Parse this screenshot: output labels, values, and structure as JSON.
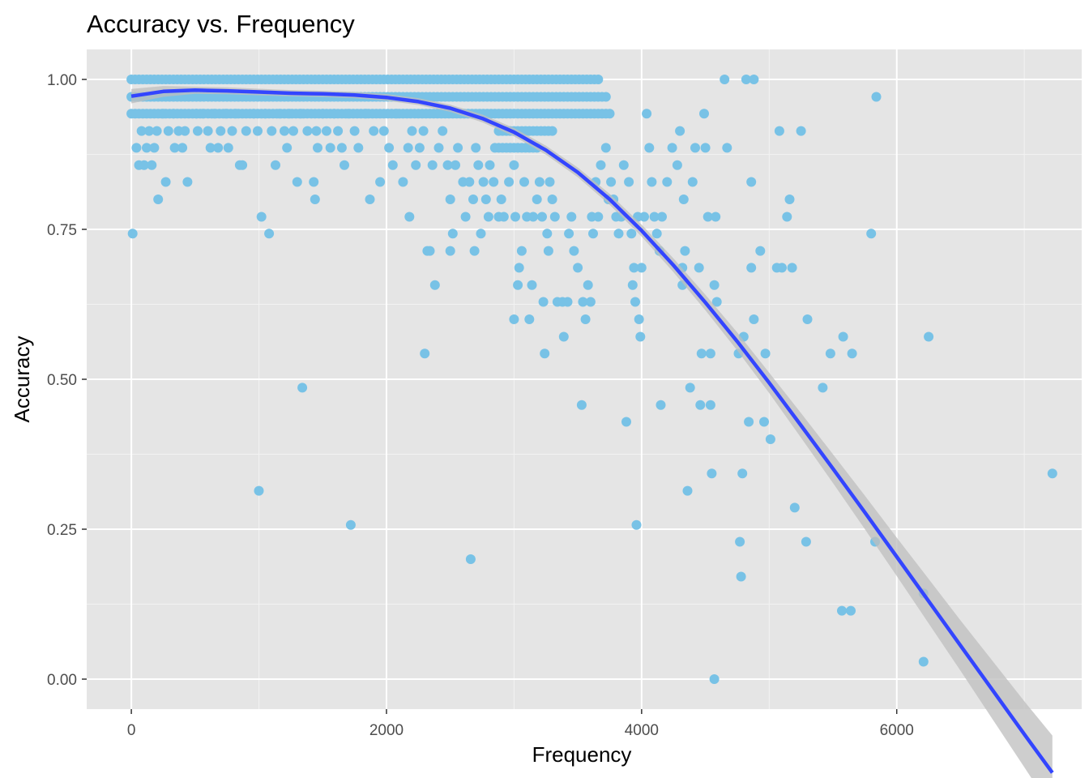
{
  "chart_data": {
    "type": "scatter",
    "title": "Accuracy vs. Frequency",
    "xlabel": "Frequency",
    "ylabel": "Accuracy",
    "xlim": [
      -350,
      7450
    ],
    "ylim": [
      -0.05,
      1.05
    ],
    "x_ticks": [
      0,
      2000,
      4000,
      6000
    ],
    "x_tick_labels": [
      "0",
      "2000",
      "4000",
      "6000"
    ],
    "y_ticks": [
      0,
      0.25,
      0.5,
      0.75,
      1.0
    ],
    "y_tick_labels": [
      "0.00",
      "0.25",
      "0.50",
      "0.75",
      "1.00"
    ],
    "grid": true,
    "background": "#e5e5e5",
    "grid_color": "#ffffff",
    "colors": {
      "points": "#78c2e6",
      "smooth": "#3345ff",
      "ribbon": "#bdbdbd"
    },
    "dense_bands": [
      {
        "y": 1.0,
        "x_from": 0,
        "x_to": 3680
      },
      {
        "y": 0.971,
        "x_from": 0,
        "x_to": 3720
      },
      {
        "y": 0.943,
        "x_from": 0,
        "x_to": 3750
      },
      {
        "y": 0.914,
        "x_from": 2880,
        "x_to": 3300
      },
      {
        "y": 0.886,
        "x_from": 2850,
        "x_to": 3200
      }
    ],
    "points": [
      [
        10,
        0.743
      ],
      [
        40,
        0.886
      ],
      [
        60,
        0.857
      ],
      [
        80,
        0.914
      ],
      [
        100,
        0.857
      ],
      [
        120,
        0.886
      ],
      [
        140,
        0.914
      ],
      [
        160,
        0.857
      ],
      [
        180,
        0.886
      ],
      [
        200,
        0.914
      ],
      [
        210,
        0.8
      ],
      [
        250,
        0.943
      ],
      [
        270,
        0.829
      ],
      [
        290,
        0.914
      ],
      [
        330,
        0.943
      ],
      [
        340,
        0.886
      ],
      [
        370,
        0.914
      ],
      [
        400,
        0.886
      ],
      [
        420,
        0.914
      ],
      [
        440,
        0.829
      ],
      [
        510,
        0.943
      ],
      [
        520,
        0.914
      ],
      [
        560,
        0.943
      ],
      [
        600,
        0.914
      ],
      [
        620,
        0.886
      ],
      [
        650,
        0.943
      ],
      [
        680,
        0.886
      ],
      [
        700,
        0.914
      ],
      [
        740,
        0.943
      ],
      [
        760,
        0.886
      ],
      [
        790,
        0.914
      ],
      [
        820,
        0.943
      ],
      [
        850,
        0.857
      ],
      [
        870,
        0.857
      ],
      [
        900,
        0.914
      ],
      [
        960,
        0.943
      ],
      [
        990,
        0.914
      ],
      [
        1000,
        0.314
      ],
      [
        1020,
        0.771
      ],
      [
        1050,
        0.943
      ],
      [
        1080,
        0.743
      ],
      [
        1100,
        0.914
      ],
      [
        1130,
        0.857
      ],
      [
        1160,
        0.943
      ],
      [
        1200,
        0.914
      ],
      [
        1220,
        0.886
      ],
      [
        1240,
        0.943
      ],
      [
        1270,
        0.914
      ],
      [
        1300,
        0.829
      ],
      [
        1330,
        0.943
      ],
      [
        1340,
        0.486
      ],
      [
        1380,
        0.914
      ],
      [
        1430,
        0.829
      ],
      [
        1440,
        0.8
      ],
      [
        1450,
        0.914
      ],
      [
        1460,
        0.886
      ],
      [
        1500,
        0.943
      ],
      [
        1530,
        0.914
      ],
      [
        1560,
        0.886
      ],
      [
        1590,
        0.943
      ],
      [
        1620,
        0.914
      ],
      [
        1650,
        0.886
      ],
      [
        1670,
        0.857
      ],
      [
        1700,
        0.943
      ],
      [
        1720,
        0.257
      ],
      [
        1750,
        0.914
      ],
      [
        1780,
        0.886
      ],
      [
        1840,
        0.943
      ],
      [
        1870,
        0.8
      ],
      [
        1900,
        0.914
      ],
      [
        1950,
        0.829
      ],
      [
        1980,
        0.914
      ],
      [
        2020,
        0.886
      ],
      [
        2050,
        0.857
      ],
      [
        2080,
        0.943
      ],
      [
        2130,
        0.829
      ],
      [
        2170,
        0.886
      ],
      [
        2180,
        0.771
      ],
      [
        2200,
        0.914
      ],
      [
        2230,
        0.857
      ],
      [
        2260,
        0.886
      ],
      [
        2290,
        0.914
      ],
      [
        2300,
        0.543
      ],
      [
        2320,
        0.714
      ],
      [
        2340,
        0.714
      ],
      [
        2360,
        0.857
      ],
      [
        2380,
        0.657
      ],
      [
        2410,
        0.886
      ],
      [
        2440,
        0.914
      ],
      [
        2480,
        0.857
      ],
      [
        2500,
        0.8
      ],
      [
        2500,
        0.714
      ],
      [
        2520,
        0.743
      ],
      [
        2540,
        0.857
      ],
      [
        2560,
        0.886
      ],
      [
        2600,
        0.829
      ],
      [
        2620,
        0.771
      ],
      [
        2650,
        0.829
      ],
      [
        2660,
        0.2
      ],
      [
        2690,
        0.714
      ],
      [
        2680,
        0.8
      ],
      [
        2700,
        0.886
      ],
      [
        2720,
        0.857
      ],
      [
        2740,
        0.743
      ],
      [
        2760,
        0.829
      ],
      [
        2780,
        0.8
      ],
      [
        2800,
        0.771
      ],
      [
        2810,
        0.857
      ],
      [
        2840,
        0.829
      ],
      [
        2880,
        0.771
      ],
      [
        2900,
        0.8
      ],
      [
        2920,
        0.771
      ],
      [
        2960,
        0.829
      ],
      [
        3000,
        0.857
      ],
      [
        3000,
        0.6
      ],
      [
        3010,
        0.771
      ],
      [
        3030,
        0.657
      ],
      [
        3040,
        0.686
      ],
      [
        3060,
        0.714
      ],
      [
        3080,
        0.829
      ],
      [
        3100,
        0.771
      ],
      [
        3120,
        0.6
      ],
      [
        3140,
        0.657
      ],
      [
        3150,
        0.771
      ],
      [
        3180,
        0.8
      ],
      [
        3200,
        0.829
      ],
      [
        3220,
        0.771
      ],
      [
        3230,
        0.629
      ],
      [
        3240,
        0.543
      ],
      [
        3260,
        0.743
      ],
      [
        3270,
        0.714
      ],
      [
        3280,
        0.829
      ],
      [
        3300,
        0.8
      ],
      [
        3320,
        0.771
      ],
      [
        3340,
        0.629
      ],
      [
        3380,
        0.629
      ],
      [
        3390,
        0.571
      ],
      [
        3420,
        0.629
      ],
      [
        3430,
        0.743
      ],
      [
        3450,
        0.771
      ],
      [
        3470,
        0.714
      ],
      [
        3500,
        0.686
      ],
      [
        3530,
        0.457
      ],
      [
        3540,
        0.629
      ],
      [
        3560,
        0.6
      ],
      [
        3580,
        0.657
      ],
      [
        3600,
        0.629
      ],
      [
        3610,
        0.771
      ],
      [
        3620,
        0.743
      ],
      [
        3640,
        0.829
      ],
      [
        3660,
        0.771
      ],
      [
        3680,
        0.857
      ],
      [
        3720,
        0.886
      ],
      [
        3740,
        0.8
      ],
      [
        3760,
        0.829
      ],
      [
        3780,
        0.8
      ],
      [
        3800,
        0.771
      ],
      [
        3820,
        0.743
      ],
      [
        3840,
        0.771
      ],
      [
        3860,
        0.857
      ],
      [
        3880,
        0.429
      ],
      [
        3900,
        0.829
      ],
      [
        3920,
        0.743
      ],
      [
        3930,
        0.657
      ],
      [
        3940,
        0.686
      ],
      [
        3950,
        0.629
      ],
      [
        3960,
        0.257
      ],
      [
        3970,
        0.771
      ],
      [
        3980,
        0.6
      ],
      [
        3990,
        0.571
      ],
      [
        4000,
        0.686
      ],
      [
        4020,
        0.771
      ],
      [
        4040,
        0.943
      ],
      [
        4060,
        0.886
      ],
      [
        4080,
        0.829
      ],
      [
        4100,
        0.771
      ],
      [
        4120,
        0.743
      ],
      [
        4140,
        0.714
      ],
      [
        4150,
        0.457
      ],
      [
        4160,
        0.771
      ],
      [
        4200,
        0.829
      ],
      [
        4240,
        0.886
      ],
      [
        4280,
        0.857
      ],
      [
        4300,
        0.914
      ],
      [
        4320,
        0.686
      ],
      [
        4320,
        0.657
      ],
      [
        4330,
        0.8
      ],
      [
        4340,
        0.714
      ],
      [
        4360,
        0.314
      ],
      [
        4380,
        0.486
      ],
      [
        4400,
        0.829
      ],
      [
        4420,
        0.886
      ],
      [
        4450,
        0.686
      ],
      [
        4460,
        0.457
      ],
      [
        4470,
        0.543
      ],
      [
        4490,
        0.943
      ],
      [
        4500,
        0.886
      ],
      [
        4520,
        0.771
      ],
      [
        4540,
        0.457
      ],
      [
        4540,
        0.543
      ],
      [
        4550,
        0.343
      ],
      [
        4570,
        0.0
      ],
      [
        4570,
        0.657
      ],
      [
        4580,
        0.771
      ],
      [
        4590,
        0.629
      ],
      [
        4650,
        1.0
      ],
      [
        4670,
        0.886
      ],
      [
        4760,
        0.543
      ],
      [
        4770,
        0.229
      ],
      [
        4780,
        0.171
      ],
      [
        4790,
        0.343
      ],
      [
        4800,
        0.571
      ],
      [
        4820,
        1.0
      ],
      [
        4840,
        0.429
      ],
      [
        4860,
        0.829
      ],
      [
        4860,
        0.686
      ],
      [
        4880,
        0.6
      ],
      [
        4880,
        1.0
      ],
      [
        4930,
        0.714
      ],
      [
        4960,
        0.429
      ],
      [
        4970,
        0.543
      ],
      [
        5010,
        0.4
      ],
      [
        5060,
        0.686
      ],
      [
        5080,
        0.914
      ],
      [
        5100,
        0.686
      ],
      [
        5140,
        0.771
      ],
      [
        5160,
        0.8
      ],
      [
        5180,
        0.686
      ],
      [
        5200,
        0.286
      ],
      [
        5250,
        0.914
      ],
      [
        5290,
        0.229
      ],
      [
        5300,
        0.6
      ],
      [
        5420,
        0.486
      ],
      [
        5480,
        0.543
      ],
      [
        5570,
        0.114
      ],
      [
        5580,
        0.571
      ],
      [
        5640,
        0.114
      ],
      [
        5650,
        0.543
      ],
      [
        5800,
        0.743
      ],
      [
        5830,
        0.229
      ],
      [
        5840,
        0.971
      ],
      [
        6210,
        0.143
      ],
      [
        6210,
        0.029
      ],
      [
        6250,
        0.571
      ],
      [
        7220,
        0.343
      ]
    ],
    "smooth_curve": [
      [
        0,
        0.972
      ],
      [
        250,
        0.98
      ],
      [
        500,
        0.982
      ],
      [
        750,
        0.981
      ],
      [
        1000,
        0.979
      ],
      [
        1250,
        0.977
      ],
      [
        1500,
        0.976
      ],
      [
        1750,
        0.974
      ],
      [
        2000,
        0.97
      ],
      [
        2250,
        0.963
      ],
      [
        2500,
        0.952
      ],
      [
        2750,
        0.935
      ],
      [
        3000,
        0.912
      ],
      [
        3250,
        0.882
      ],
      [
        3500,
        0.845
      ],
      [
        3750,
        0.8
      ],
      [
        4000,
        0.748
      ],
      [
        4250,
        0.69
      ],
      [
        4500,
        0.628
      ],
      [
        4750,
        0.563
      ],
      [
        5000,
        0.494
      ],
      [
        5250,
        0.423
      ],
      [
        5500,
        0.351
      ],
      [
        5750,
        0.278
      ],
      [
        6000,
        0.204
      ],
      [
        6250,
        0.13
      ],
      [
        6500,
        0.056
      ],
      [
        6750,
        -0.018
      ],
      [
        7000,
        -0.092
      ],
      [
        7220,
        -0.156
      ]
    ],
    "ribbon_halfwidth": [
      [
        0,
        0.012
      ],
      [
        500,
        0.006
      ],
      [
        1500,
        0.005
      ],
      [
        2500,
        0.006
      ],
      [
        3500,
        0.008
      ],
      [
        4000,
        0.01
      ],
      [
        4500,
        0.013
      ],
      [
        5000,
        0.017
      ],
      [
        5500,
        0.024
      ],
      [
        6000,
        0.032
      ],
      [
        6500,
        0.042
      ],
      [
        7000,
        0.055
      ],
      [
        7220,
        0.062
      ]
    ]
  }
}
